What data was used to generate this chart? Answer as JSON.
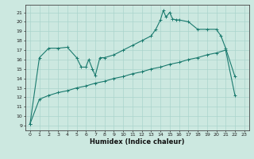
{
  "xlabel": "Humidex (Indice chaleur)",
  "bg_color": "#cce8e0",
  "line_color": "#1a7a6e",
  "grid_color": "#aad4cc",
  "xlim": [
    -0.5,
    23.5
  ],
  "ylim": [
    8.5,
    21.8
  ],
  "xticks": [
    0,
    1,
    2,
    3,
    4,
    5,
    6,
    7,
    8,
    9,
    10,
    11,
    12,
    13,
    14,
    15,
    16,
    17,
    18,
    19,
    20,
    21,
    22,
    23
  ],
  "yticks": [
    9,
    10,
    11,
    12,
    13,
    14,
    15,
    16,
    17,
    18,
    19,
    20,
    21
  ],
  "upper_line": [
    [
      0,
      9.2
    ],
    [
      1,
      16.2
    ],
    [
      2,
      17.2
    ],
    [
      3,
      17.2
    ],
    [
      4,
      17.3
    ],
    [
      5,
      16.2
    ],
    [
      5.5,
      15.2
    ],
    [
      6,
      15.2
    ],
    [
      6.3,
      16.0
    ],
    [
      6.7,
      15.0
    ],
    [
      7,
      14.3
    ],
    [
      7.5,
      16.2
    ],
    [
      8,
      16.2
    ],
    [
      9,
      16.5
    ],
    [
      10,
      17.0
    ],
    [
      11,
      17.5
    ],
    [
      12,
      18.0
    ],
    [
      13,
      18.5
    ],
    [
      13.5,
      19.2
    ],
    [
      14,
      20.2
    ],
    [
      14.3,
      21.2
    ],
    [
      14.6,
      20.5
    ],
    [
      15,
      21.0
    ],
    [
      15.3,
      20.3
    ],
    [
      15.7,
      20.2
    ],
    [
      16,
      20.2
    ],
    [
      17,
      20.0
    ],
    [
      18,
      19.2
    ],
    [
      19,
      19.2
    ],
    [
      20,
      19.2
    ],
    [
      20.5,
      18.5
    ],
    [
      21,
      17.2
    ],
    [
      22,
      14.2
    ]
  ],
  "lower_line": [
    [
      0,
      9.2
    ],
    [
      1,
      11.8
    ],
    [
      2,
      12.2
    ],
    [
      3,
      12.5
    ],
    [
      4,
      12.7
    ],
    [
      5,
      13.0
    ],
    [
      6,
      13.2
    ],
    [
      7,
      13.5
    ],
    [
      8,
      13.7
    ],
    [
      9,
      14.0
    ],
    [
      10,
      14.2
    ],
    [
      11,
      14.5
    ],
    [
      12,
      14.7
    ],
    [
      13,
      15.0
    ],
    [
      14,
      15.2
    ],
    [
      15,
      15.5
    ],
    [
      16,
      15.7
    ],
    [
      17,
      16.0
    ],
    [
      18,
      16.2
    ],
    [
      19,
      16.5
    ],
    [
      20,
      16.7
    ],
    [
      21,
      17.0
    ],
    [
      22,
      12.2
    ]
  ]
}
